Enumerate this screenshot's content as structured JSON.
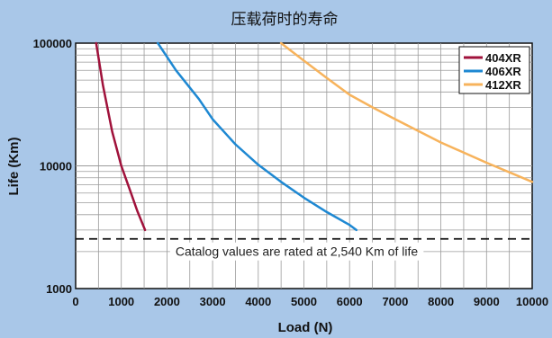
{
  "chart_data": {
    "type": "line",
    "title": "压载荷时的寿命",
    "xlabel": "Load (N)",
    "ylabel": "Life (Km)",
    "xscale": "linear",
    "yscale": "log",
    "xlim": [
      0,
      10000
    ],
    "ylim": [
      1000,
      100000
    ],
    "x_ticks": [
      "0",
      "1000",
      "2000",
      "3000",
      "4000",
      "5000",
      "6000",
      "7000",
      "8000",
      "9000",
      "10000"
    ],
    "y_ticks": [
      "1000",
      "10000",
      "100000"
    ],
    "grid": true,
    "legend_position": "top-right",
    "series": [
      {
        "name": "404XR",
        "color": "#a0123b",
        "points": [
          [
            450,
            100000
          ],
          [
            600,
            45000
          ],
          [
            800,
            19000
          ],
          [
            1000,
            10000
          ],
          [
            1200,
            6200
          ],
          [
            1350,
            4300
          ],
          [
            1520,
            3000
          ]
        ]
      },
      {
        "name": "406XR",
        "color": "#1e88d2",
        "points": [
          [
            1800,
            100000
          ],
          [
            2200,
            60000
          ],
          [
            2700,
            35000
          ],
          [
            3000,
            24000
          ],
          [
            3500,
            15000
          ],
          [
            4000,
            10200
          ],
          [
            4500,
            7400
          ],
          [
            5000,
            5500
          ],
          [
            5500,
            4200
          ],
          [
            6000,
            3300
          ],
          [
            6150,
            3000
          ]
        ]
      },
      {
        "name": "412XR",
        "color": "#f7b35c",
        "points": [
          [
            4500,
            100000
          ],
          [
            5000,
            72000
          ],
          [
            5500,
            52000
          ],
          [
            6000,
            38000
          ],
          [
            6500,
            30000
          ],
          [
            7000,
            24000
          ],
          [
            8000,
            15500
          ],
          [
            9000,
            10600
          ],
          [
            10000,
            7400
          ]
        ]
      }
    ],
    "reference_line": {
      "value": 2540,
      "style": "dashed",
      "color": "#111111"
    },
    "annotation": "Catalog values are rated at 2,540 Km of life"
  }
}
